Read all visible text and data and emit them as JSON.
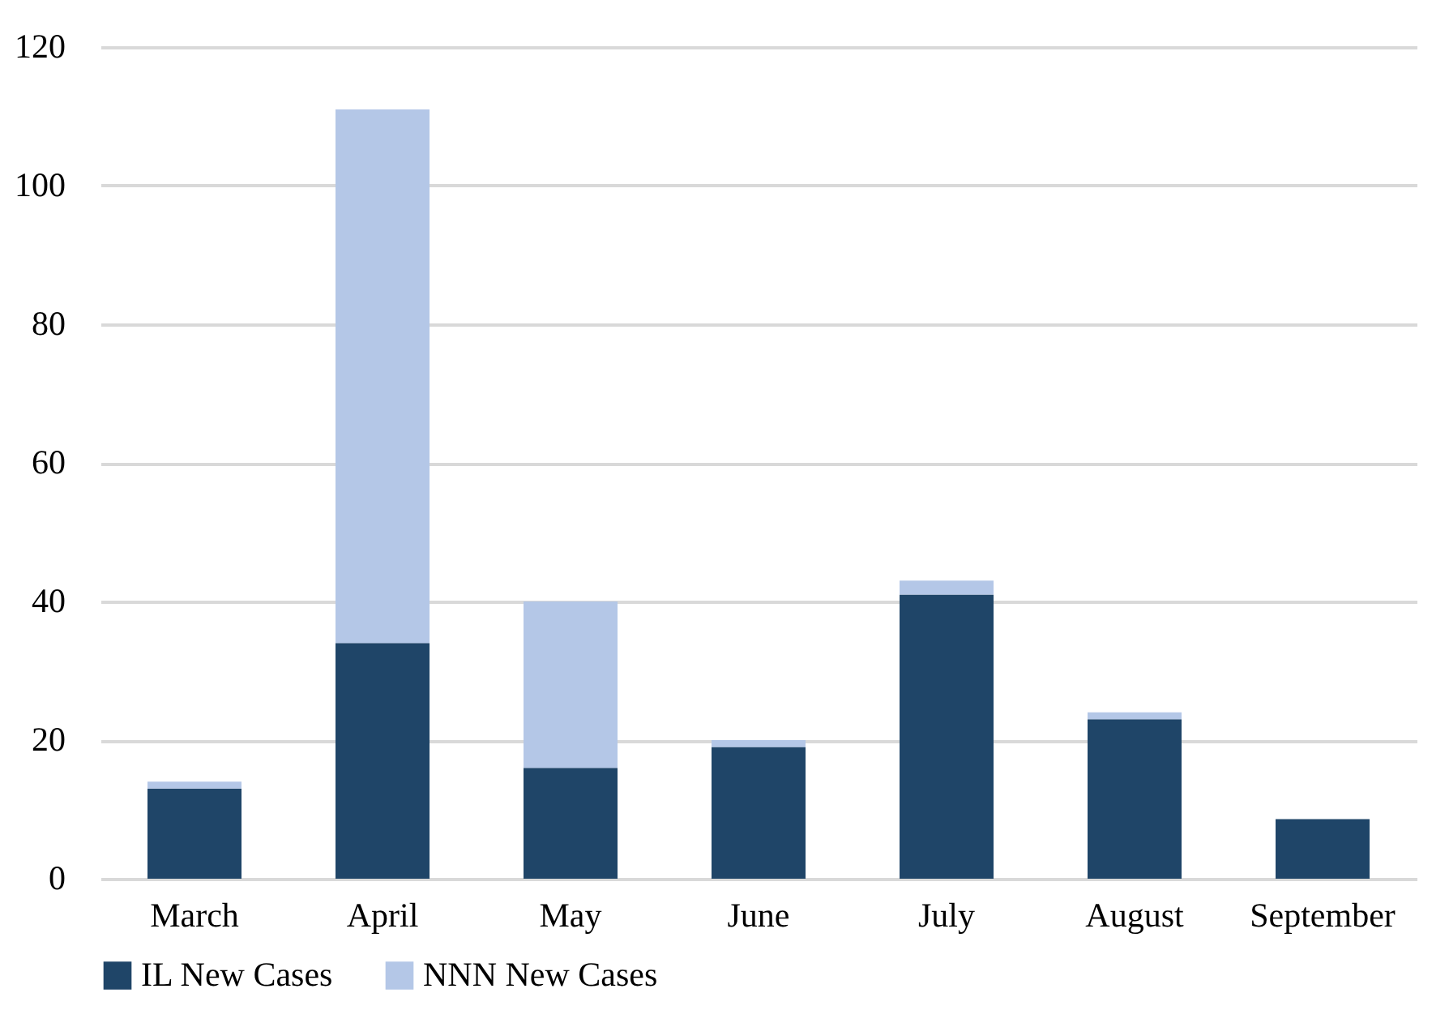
{
  "chart_data": {
    "type": "bar",
    "stacked": true,
    "categories": [
      "March",
      "April",
      "May",
      "June",
      "July",
      "August",
      "September"
    ],
    "series": [
      {
        "name": "IL New Cases",
        "color": "#1f4568",
        "values": [
          13,
          34,
          16,
          19,
          41,
          23,
          8.6
        ]
      },
      {
        "name": "NNN New Cases",
        "color": "#b4c7e7",
        "values": [
          1,
          77,
          24,
          1,
          2,
          1,
          0
        ]
      }
    ],
    "ylim": [
      0,
      120
    ],
    "yticks": [
      0,
      20,
      40,
      60,
      80,
      100,
      120
    ],
    "grid": "y",
    "legend": "bottom"
  }
}
